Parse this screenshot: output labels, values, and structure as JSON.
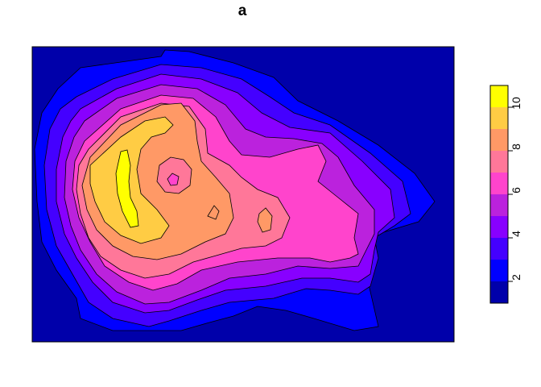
{
  "chart_data": {
    "type": "heatmap",
    "title": "a",
    "xlabel": "",
    "ylabel": "",
    "colorbar": {
      "levels": [
        1,
        2,
        3,
        4,
        5,
        6,
        7,
        8,
        9,
        10,
        11
      ],
      "ticks": [
        2,
        4,
        6,
        8,
        10
      ],
      "tick_labels": [
        "2",
        "4",
        "6",
        "8",
        "10"
      ],
      "colors": [
        "#0000AA",
        "#0000FF",
        "#4400FF",
        "#8800FF",
        "#BB22DD",
        "#FF44CC",
        "#FF7799",
        "#FF9966",
        "#FFCC44",
        "#FFFF00"
      ]
    },
    "contour_levels": [
      {
        "level": 1,
        "color": "#0000AA"
      },
      {
        "level": 2,
        "color": "#0000FF"
      },
      {
        "level": 3,
        "color": "#4400FF"
      },
      {
        "level": 4,
        "color": "#8800FF"
      },
      {
        "level": 5,
        "color": "#BB22DD"
      },
      {
        "level": 6,
        "color": "#FF44CC"
      },
      {
        "level": 7,
        "color": "#FF7799"
      },
      {
        "level": 8,
        "color": "#FF9966"
      },
      {
        "level": 9,
        "color": "#FFCC44"
      },
      {
        "level": 10,
        "color": "#FFFF00"
      }
    ],
    "grid": false,
    "legend": "right"
  }
}
